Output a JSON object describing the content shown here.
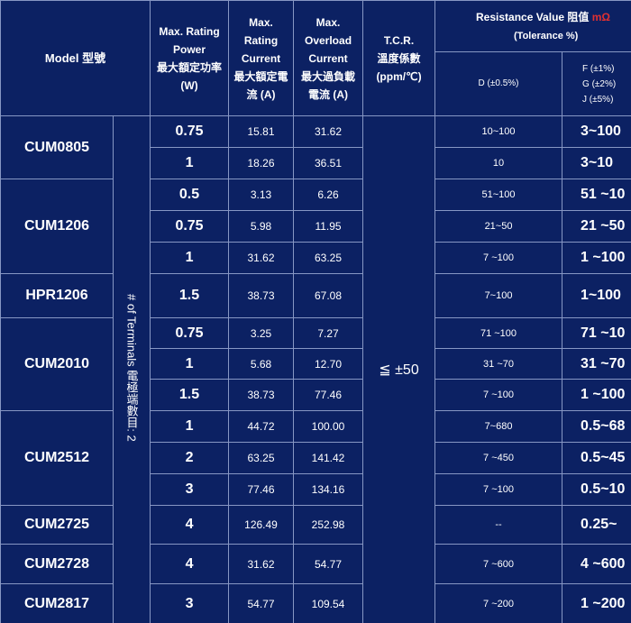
{
  "header": {
    "model": "Model 型號",
    "power": [
      "Max. Rating",
      "Power",
      "最大額定功率",
      "(W)"
    ],
    "current": [
      "Max.",
      "Rating",
      "Current",
      "最大額定電",
      "流 (A)"
    ],
    "overload": [
      "Max.",
      "Overload",
      "Current",
      "最大過負載",
      "電流 (A)"
    ],
    "tcr": [
      "T.C.R.",
      "溫度係數",
      "(ppm/℃)"
    ],
    "resistance": "Resistance Value 阻值",
    "resistance_unit": "mΩ",
    "tolerance": "(Tolerance %)",
    "d_col": "D (±0.5%)",
    "f_col": [
      "F (±1%)",
      "G (±2%)",
      "J (±5%)"
    ]
  },
  "terminals": "# of Terminals 電極端數目: 2",
  "tcr_value": "≦ ±50",
  "rows": [
    {
      "model": "CUM0805",
      "span": 2,
      "power": "0.75",
      "current": "15.81",
      "overload": "31.62",
      "d": "10~100",
      "f": "3~100"
    },
    {
      "power": "1",
      "current": "18.26",
      "overload": "36.51",
      "d": "10",
      "f": "3~10"
    },
    {
      "model": "CUM1206",
      "span": 3,
      "power": "0.5",
      "current": "3.13",
      "overload": "6.26",
      "d": "51~100",
      "f": "51 ~10"
    },
    {
      "power": "0.75",
      "current": "5.98",
      "overload": "11.95",
      "d": "21~50",
      "f": "21 ~50"
    },
    {
      "power": "1",
      "current": "31.62",
      "overload": "63.25",
      "d": "7 ~100",
      "f": "1 ~100"
    },
    {
      "model": "HPR1206",
      "span": 1,
      "power": "1.5",
      "current": "38.73",
      "overload": "67.08",
      "d": "7~100",
      "f": "1~100"
    },
    {
      "model": "CUM2010",
      "span": 3,
      "power": "0.75",
      "current": "3.25",
      "overload": "7.27",
      "d": "71 ~100",
      "f": "71 ~10"
    },
    {
      "power": "1",
      "current": "5.68",
      "overload": "12.70",
      "d": "31 ~70",
      "f": "31 ~70"
    },
    {
      "power": "1.5",
      "current": "38.73",
      "overload": "77.46",
      "d": "7 ~100",
      "f": "1 ~100"
    },
    {
      "model": "CUM2512",
      "span": 3,
      "power": "1",
      "current": "44.72",
      "overload": "100.00",
      "d": "7~680",
      "f": "0.5~68"
    },
    {
      "power": "2",
      "current": "63.25",
      "overload": "141.42",
      "d": "7 ~450",
      "f": "0.5~45"
    },
    {
      "power": "3",
      "current": "77.46",
      "overload": "134.16",
      "d": "7 ~100",
      "f": "0.5~10"
    },
    {
      "model": "CUM2725",
      "span": 1,
      "power": "4",
      "current": "126.49",
      "overload": "252.98",
      "d": "--",
      "f": "0.25~"
    },
    {
      "model": "CUM2728",
      "span": 1,
      "power": "4",
      "current": "31.62",
      "overload": "54.77",
      "d": "7 ~600",
      "f": "4 ~600"
    },
    {
      "model": "CUM2817",
      "span": 1,
      "power": "3",
      "current": "54.77",
      "overload": "109.54",
      "d": "7 ~200",
      "f": "1 ~200"
    }
  ]
}
